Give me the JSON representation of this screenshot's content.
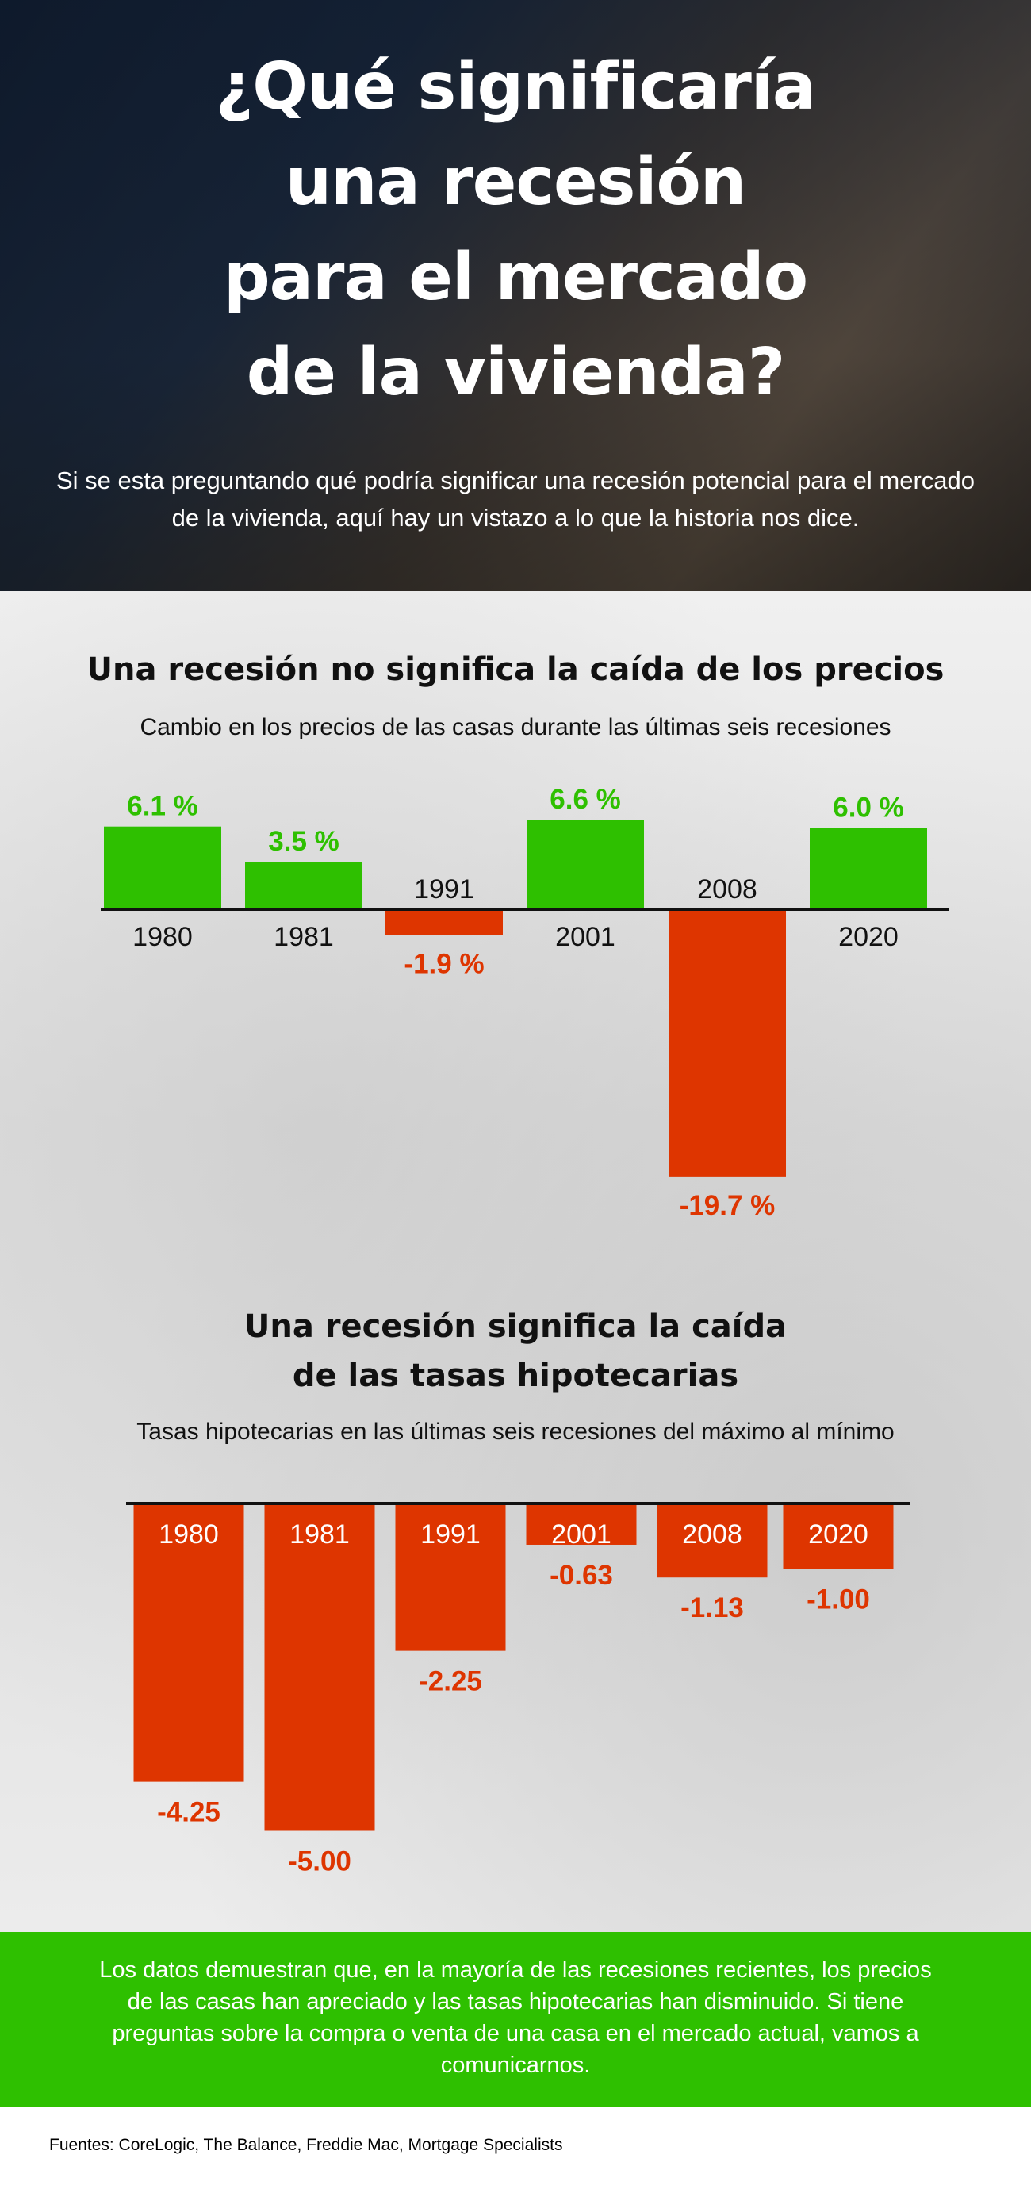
{
  "header": {
    "title_lines": [
      "¿Qué significaría",
      "una recesión",
      "para el mercado",
      "de la vivienda?"
    ],
    "subtitle": "Si se esta preguntando qué podría significar una recesión potencial para el mercado de la vivienda, aquí hay un vistazo a lo que la historia nos dice."
  },
  "colors": {
    "positive": "#2ec000",
    "negative": "#de3500",
    "axis": "#111111"
  },
  "chart_data": [
    {
      "type": "bar",
      "title": "Una recesión no significa la caída de los precios",
      "subtitle": "Cambio en los precios de las casas durante las últimas seis recesiones",
      "categories": [
        "1980",
        "1981",
        "1991",
        "2001",
        "2008",
        "2020"
      ],
      "values": [
        6.1,
        3.5,
        -1.9,
        6.6,
        -19.7,
        6.0
      ],
      "data_labels": [
        "6.1 %",
        "3.5 %",
        "-1.9 %",
        "6.6 %",
        "-19.7 %",
        "6.0 %"
      ],
      "xlabel": "",
      "ylabel": "",
      "grid": false
    },
    {
      "type": "bar",
      "title_lines": [
        "Una recesión significa la caída",
        "de las tasas hipotecarias"
      ],
      "subtitle": "Tasas hipotecarias en las últimas seis recesiones del máximo al mínimo",
      "categories": [
        "1980",
        "1981",
        "1991",
        "2001",
        "2008",
        "2020"
      ],
      "values": [
        -4.25,
        -5.0,
        -2.25,
        -0.63,
        -1.13,
        -1.0
      ],
      "data_labels": [
        "-4.25",
        "-5.00",
        "-2.25",
        "-0.63",
        "-1.13",
        "-1.00"
      ],
      "xlabel": "",
      "ylabel": "",
      "grid": false
    }
  ],
  "footer": {
    "message": "Los datos demuestran que, en la mayoría de las recesiones recientes, los precios de las casas han apreciado y las tasas hipotecarias han disminuido. Si tiene preguntas sobre la compra o venta de una casa en el mercado actual, vamos a comunicarnos.",
    "sources": "Fuentes: CoreLogic, The Balance, Freddie Mac, Mortgage Specialists"
  }
}
